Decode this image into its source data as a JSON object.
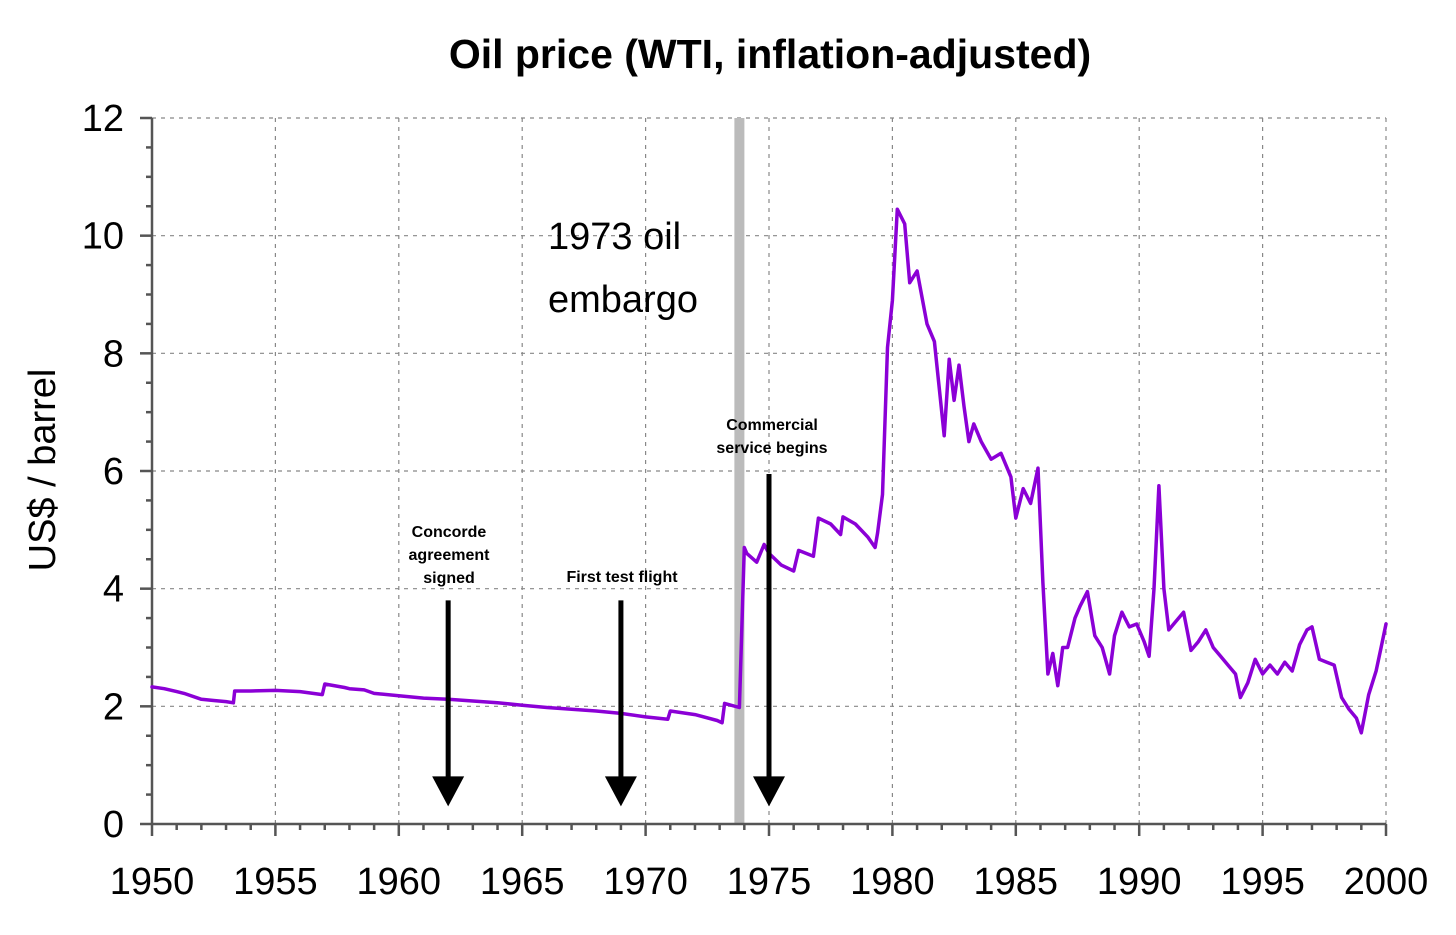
{
  "chart_data": {
    "type": "line",
    "title": "Oil price (WTI, inflation-adjusted)",
    "xlabel": "",
    "ylabel": "US$ / barrel",
    "xlim": [
      1950,
      2000
    ],
    "ylim": [
      0,
      12
    ],
    "xticks": [
      1950,
      1955,
      1960,
      1965,
      1970,
      1975,
      1980,
      1985,
      1990,
      1995,
      2000
    ],
    "yticks": [
      0,
      2,
      4,
      6,
      8,
      10,
      12
    ],
    "grid": true,
    "line_color": "#8b00d6",
    "band_color": "#bbbbbb",
    "arrow_color": "#000000",
    "series": [
      {
        "x": [
          1950,
          1950.5,
          1951,
          1951.3,
          1952,
          1952.5,
          1953,
          1953.3,
          1953.35,
          1954,
          1955,
          1956,
          1956.9,
          1957,
          1957.8,
          1958,
          1958.6,
          1959,
          1960,
          1961,
          1962,
          1963,
          1964,
          1965,
          1966,
          1967,
          1968,
          1969,
          1970,
          1970.9,
          1971,
          1972,
          1972.9,
          1973.1,
          1973.2,
          1973.8,
          1974.0,
          1974.1,
          1974.5,
          1974.8,
          1975.0,
          1975.5,
          1976.0,
          1976.2,
          1976.8,
          1977.0,
          1977.5,
          1977.9,
          1978.0,
          1978.5,
          1979.0,
          1979.3,
          1979.4,
          1979.6,
          1979.8,
          1980.0,
          1980.2,
          1980.5,
          1980.7,
          1981.0,
          1981.4,
          1981.7,
          1981.9,
          1982.1,
          1982.3,
          1982.5,
          1982.7,
          1982.9,
          1983.1,
          1983.3,
          1983.6,
          1984.0,
          1984.4,
          1984.8,
          1985.0,
          1985.3,
          1985.6,
          1985.9,
          1986.1,
          1986.3,
          1986.5,
          1986.7,
          1986.9,
          1987.1,
          1987.4,
          1987.6,
          1987.9,
          1988.2,
          1988.5,
          1988.8,
          1989.0,
          1989.3,
          1989.6,
          1989.9,
          1990.2,
          1990.4,
          1990.6,
          1990.8,
          1991.0,
          1991.2,
          1991.5,
          1991.8,
          1992.1,
          1992.4,
          1992.7,
          1993.0,
          1993.3,
          1993.6,
          1993.9,
          1994.1,
          1994.4,
          1994.7,
          1995.0,
          1995.3,
          1995.6,
          1995.9,
          1996.2,
          1996.5,
          1996.8,
          1997.0,
          1997.3,
          1997.6,
          1997.9,
          1998.2,
          1998.5,
          1998.8,
          1999.0,
          1999.3,
          1999.6,
          1999.8,
          2000.0
        ],
        "y": [
          2.33,
          2.3,
          2.25,
          2.22,
          2.12,
          2.1,
          2.08,
          2.06,
          2.26,
          2.26,
          2.27,
          2.25,
          2.2,
          2.38,
          2.32,
          2.3,
          2.28,
          2.22,
          2.18,
          2.14,
          2.12,
          2.09,
          2.06,
          2.02,
          1.98,
          1.95,
          1.92,
          1.88,
          1.82,
          1.78,
          1.92,
          1.86,
          1.76,
          1.72,
          2.05,
          1.98,
          4.7,
          4.6,
          4.45,
          4.75,
          4.6,
          4.4,
          4.3,
          4.65,
          4.55,
          5.2,
          5.1,
          4.92,
          5.22,
          5.1,
          4.88,
          4.7,
          4.95,
          5.6,
          8.1,
          8.9,
          10.45,
          10.2,
          9.2,
          9.4,
          8.5,
          8.2,
          7.4,
          6.6,
          7.9,
          7.2,
          7.8,
          7.1,
          6.5,
          6.8,
          6.5,
          6.2,
          6.3,
          5.9,
          5.2,
          5.7,
          5.45,
          6.05,
          4.1,
          2.55,
          2.9,
          2.35,
          3.0,
          3.0,
          3.5,
          3.7,
          3.95,
          3.2,
          3.0,
          2.55,
          3.2,
          3.6,
          3.35,
          3.4,
          3.1,
          2.85,
          4.0,
          5.75,
          4.0,
          3.3,
          3.45,
          3.6,
          2.95,
          3.1,
          3.3,
          3.0,
          2.85,
          2.7,
          2.55,
          2.15,
          2.4,
          2.8,
          2.55,
          2.7,
          2.55,
          2.75,
          2.6,
          3.05,
          3.3,
          3.35,
          2.8,
          2.75,
          2.7,
          2.15,
          1.95,
          1.8,
          1.55,
          2.2,
          2.6,
          3.0,
          3.4
        ],
        "color": "#8b00d6"
      }
    ],
    "shaded_region": {
      "x": 1973.8
    },
    "annotations": [
      {
        "text_lines": [
          "1973 oil",
          "embargo"
        ]
      },
      {
        "text_lines": [
          "Concorde",
          "agreement",
          "signed"
        ],
        "arrow_x": 1962,
        "arrow_from_y": 3.8,
        "arrow_to_y": 0.3
      },
      {
        "text_lines": [
          "First test flight"
        ],
        "arrow_x": 1969,
        "arrow_from_y": 3.8,
        "arrow_to_y": 0.3
      },
      {
        "text_lines": [
          "Commercial",
          "service begins"
        ],
        "arrow_x": 1975,
        "arrow_from_y": 5.95,
        "arrow_to_y": 0.3
      }
    ]
  }
}
